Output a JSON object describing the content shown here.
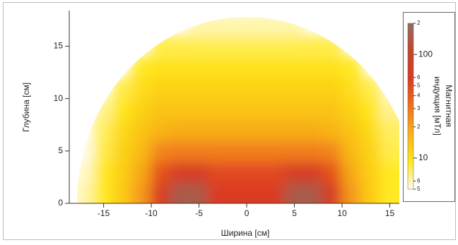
{
  "chart_data": {
    "type": "heatmap",
    "x_label": "Ширина [см]",
    "y_label": "Глубина [см]",
    "colorbar_label": [
      "Магнитная",
      "индукция [мТл]"
    ],
    "x": [
      -17,
      -15,
      -13,
      -11,
      -9,
      -7,
      -5,
      -3,
      -1,
      1,
      3,
      5,
      7,
      9,
      11,
      13,
      15
    ],
    "y": [
      1,
      3,
      5,
      7,
      9,
      11,
      13,
      15,
      17
    ],
    "z": [
      [
        6,
        9,
        13,
        22,
        65,
        150,
        150,
        60,
        60,
        60,
        60,
        150,
        150,
        65,
        22,
        13,
        9
      ],
      [
        5.5,
        9,
        12.5,
        19,
        44,
        70,
        70,
        50,
        50,
        50,
        50,
        70,
        70,
        44,
        19,
        12.5,
        9
      ],
      [
        5,
        8,
        12,
        16,
        26,
        28,
        28,
        28,
        28,
        28,
        28,
        28,
        28,
        26,
        16,
        12,
        8
      ],
      [
        null,
        7.5,
        11,
        14,
        17,
        18,
        18,
        18,
        18,
        18,
        18,
        18,
        18,
        17,
        14,
        11,
        7.5
      ],
      [
        null,
        6.5,
        9.5,
        12,
        14,
        14,
        14,
        14,
        14,
        14,
        14,
        14,
        14,
        14,
        12,
        9.5,
        6.5
      ],
      [
        null,
        null,
        8,
        10.5,
        12,
        12,
        12,
        12,
        12,
        12,
        12,
        12,
        12,
        12,
        10.5,
        8,
        null
      ],
      [
        null,
        null,
        null,
        9,
        10,
        10,
        10,
        10,
        10,
        10,
        10,
        10,
        10,
        10,
        9,
        null,
        null
      ],
      [
        null,
        null,
        null,
        null,
        8,
        8,
        8,
        8,
        8,
        8,
        8,
        8,
        8,
        8,
        null,
        null,
        null
      ],
      [
        null,
        null,
        null,
        null,
        null,
        null,
        6,
        6,
        6,
        6,
        6,
        6,
        null,
        null,
        null,
        null,
        null
      ]
    ],
    "xlim": [
      -18.6,
      16
    ],
    "ylim": [
      0,
      18.4
    ],
    "xticks": [
      -15,
      -10,
      -5,
      0,
      5,
      10,
      15
    ],
    "yticks": [
      0,
      5,
      10,
      15
    ],
    "clim": [
      5,
      200
    ],
    "color_scale": "log",
    "cticks": [
      {
        "value": 200,
        "label": "2"
      },
      100,
      {
        "value": 60,
        "label": "6"
      },
      {
        "value": 50,
        "label": "5"
      },
      {
        "value": 40,
        "label": "4"
      },
      {
        "value": 30,
        "label": "3"
      },
      {
        "value": 20,
        "label": "2"
      },
      10,
      {
        "value": 6,
        "label": "6"
      },
      {
        "value": 5,
        "label": "5"
      }
    ],
    "colors": [
      "#fffbea",
      "#ffe81a",
      "#f8b318",
      "#f0701c",
      "#dc3a22",
      "#c5452c",
      "#8f6f62"
    ]
  }
}
